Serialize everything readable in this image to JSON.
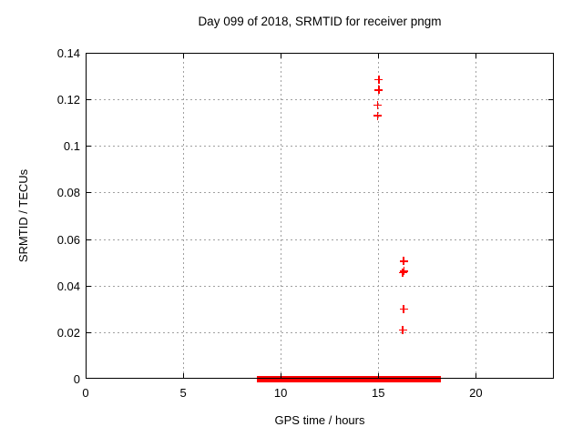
{
  "page": {
    "background_color": "#ffffff",
    "text_color": "#000000"
  },
  "chart_data": {
    "type": "scatter",
    "title": "Day 099 of 2018, SRMTID for receiver pngm",
    "xlabel": "GPS time / hours",
    "ylabel": "SRMTID / TECUs",
    "xlim": [
      0,
      24
    ],
    "ylim": [
      0,
      0.14
    ],
    "xticks": {
      "values": [
        0,
        5,
        10,
        15,
        20
      ],
      "labels": [
        "0",
        "5",
        "10",
        "15",
        "20"
      ]
    },
    "yticks": {
      "values": [
        0,
        0.02,
        0.04,
        0.06,
        0.08,
        0.1,
        0.12,
        0.14
      ],
      "labels": [
        "0",
        "0.02",
        "0.04",
        "0.06",
        "0.08",
        "0.1",
        "0.12",
        "0.14"
      ]
    },
    "grid": {
      "visible": true,
      "style": "dotted",
      "color": "#a0a0a0"
    },
    "legend": {
      "visible": false
    },
    "series": [
      {
        "name": "SRMTID",
        "marker": "plus",
        "color": "#ff0000",
        "points": [
          [
            15.02,
            0.1285
          ],
          [
            15.02,
            0.124
          ],
          [
            14.96,
            0.1175
          ],
          [
            14.96,
            0.113
          ],
          [
            16.3,
            0.0505
          ],
          [
            16.26,
            0.0455
          ],
          [
            16.31,
            0.0462
          ],
          [
            16.3,
            0.03
          ],
          [
            16.26,
            0.021
          ]
        ]
      }
    ],
    "zero_line_segment": {
      "description": "dense run of overlapping plus markers at y=0 forming a thick bar",
      "y": 0,
      "x_start": 8.8,
      "x_end": 18.2,
      "color": "#ff0000",
      "thickness_px": 7
    }
  }
}
